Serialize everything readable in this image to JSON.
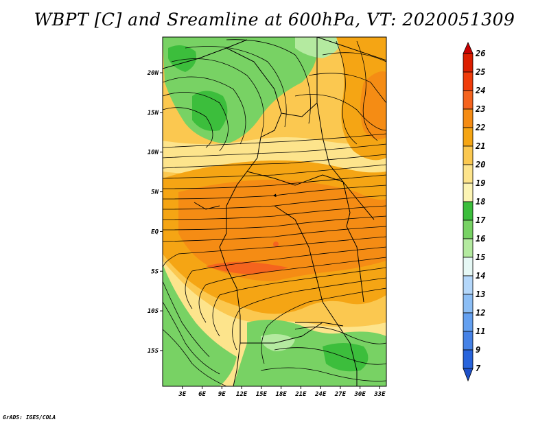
{
  "title": "WBPT [C] and Sreamline at 600hPa, VT: 2020051309",
  "footer": "GrADS: IGES/COLA",
  "map": {
    "lat_labels": [
      "20N",
      "15N",
      "10N",
      "5N",
      "EQ",
      "5S",
      "10S",
      "15S"
    ],
    "lat_values": [
      20,
      15,
      10,
      5,
      0,
      -5,
      -10,
      -15
    ],
    "lon_labels": [
      "3E",
      "6E",
      "9E",
      "12E",
      "15E",
      "18E",
      "21E",
      "24E",
      "27E",
      "30E",
      "33E"
    ],
    "lon_values": [
      3,
      6,
      9,
      12,
      15,
      18,
      21,
      24,
      27,
      30,
      33
    ],
    "lat_range": [
      -19.5,
      24.5
    ],
    "lon_range": [
      0,
      34
    ]
  },
  "colorbar": {
    "levels": [
      "26",
      "25",
      "24",
      "23",
      "22",
      "21",
      "20",
      "19",
      "18",
      "17",
      "16",
      "15",
      "14",
      "13",
      "12",
      "11",
      "9",
      "7"
    ],
    "colors": [
      "#c80000",
      "#dc1e00",
      "#f03c0a",
      "#f5641e",
      "#f58c14",
      "#f5a514",
      "#fbc850",
      "#fde48c",
      "#fcf4b4",
      "#3cbe3c",
      "#78d264",
      "#b4eaa0",
      "#e6f8f5",
      "#b4d7fa",
      "#8cbef5",
      "#64a0f0",
      "#4682e6",
      "#2864dc",
      "#1e50c8"
    ]
  }
}
